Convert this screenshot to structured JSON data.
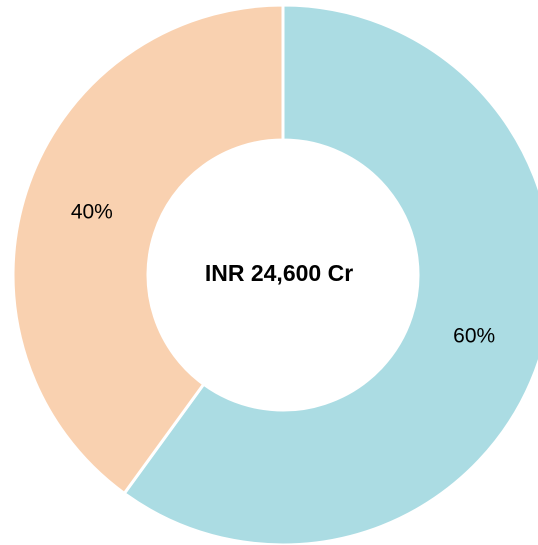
{
  "chart_data": {
    "type": "donut",
    "center_label": "INR 24,600 Cr",
    "values": [
      60,
      40
    ],
    "value_labels": [
      "60%",
      "40%"
    ],
    "colors": [
      "#abdce3",
      "#f9d1b0"
    ]
  }
}
